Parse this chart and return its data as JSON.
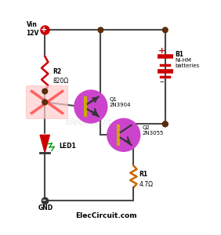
{
  "title": "ElecCircuit.com",
  "background_color": "#ffffff",
  "wire_color": "#4a4a4a",
  "resistor_color_r2": "#cc0000",
  "resistor_color_r1": "#cc6600",
  "transistor_color": "#cc44cc",
  "led_body_color": "#cc0000",
  "led_lens_color": "#009900",
  "battery_color": "#cc0000",
  "node_color": "#5a2d0c",
  "logo_color": "#ff4444",
  "logo_bg": "#ffcccc",
  "vin_label": "Vin\n12V",
  "gnd_label": "GND",
  "r2_label": "R2",
  "r2_value": "820Ω",
  "r1_label": "R1",
  "r1_value": "4.7Ω",
  "q1_label": "Q1\n2N3904",
  "q2_label": "Q2\n2N3055",
  "b1_label": "B1",
  "b1_type": "Ni-HM\nbatteries",
  "led_label": "LED1"
}
